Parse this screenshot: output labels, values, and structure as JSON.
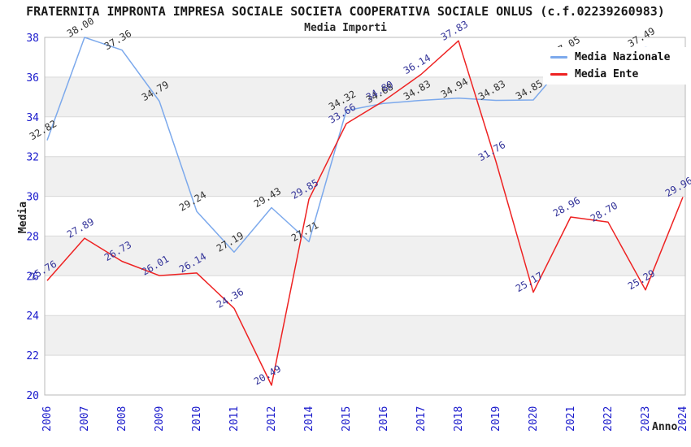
{
  "header": {
    "title": "FRATERNITA IMPRONTA IMPRESA SOCIALE SOCIETA COOPERATIVA SOCIALE ONLUS (c.f.02239260983)",
    "subtitle": "Media Importi"
  },
  "chart_data": {
    "type": "line",
    "title": "FRATERNITA IMPRONTA IMPRESA SOCIALE SOCIETA COOPERATIVA SOCIALE ONLUS (c.f.02239260983)",
    "subtitle": "Media Importi",
    "xlabel": "Anno",
    "ylabel": "Media",
    "ylim": [
      20,
      38
    ],
    "yticks": [
      20,
      22,
      24,
      26,
      28,
      30,
      32,
      34,
      36,
      38
    ],
    "categories": [
      "2006",
      "2007",
      "2008",
      "2009",
      "2010",
      "2011",
      "2012",
      "2014",
      "2015",
      "2016",
      "2017",
      "2018",
      "2019",
      "2020",
      "2021",
      "2022",
      "2023",
      "2024"
    ],
    "grid": "horizontal-bands-alternating-gray",
    "band_gray": "#f0f0f0",
    "axis_tick_color": "#1a1acc",
    "legend_position": "top-right-inside",
    "series": [
      {
        "name": "Media Nazionale",
        "color": "#7CA9EC",
        "label_color": "#333333",
        "values": [
          32.82,
          38.0,
          37.36,
          34.79,
          29.24,
          27.19,
          29.43,
          27.71,
          34.32,
          34.68,
          34.83,
          34.94,
          34.83,
          34.85,
          37.05,
          37.1,
          37.49,
          37.3
        ],
        "labels": [
          "32.82",
          "38.00",
          "37.36",
          "34.79",
          "29.24",
          "27.19",
          "29.43",
          "27.71",
          "34.32",
          "34.68",
          "34.83",
          "34.94",
          "34.83",
          "34.85",
          "37.05",
          null,
          "37.49",
          null
        ]
      },
      {
        "name": "Media Ente",
        "color": "#EE2222",
        "label_color": "#333399",
        "values": [
          25.76,
          27.89,
          26.73,
          26.01,
          26.14,
          24.36,
          20.49,
          29.85,
          33.66,
          34.8,
          36.14,
          37.83,
          31.76,
          25.17,
          28.96,
          28.7,
          25.29,
          29.96
        ],
        "labels": [
          "25.76",
          "27.89",
          "26.73",
          "26.01",
          "26.14",
          "24.36",
          "20.49",
          "29.85",
          "33.66",
          "34.80",
          "36.14",
          "37.83",
          "31.76",
          "25.17",
          "28.96",
          "28.70",
          "25.29",
          "29.96"
        ]
      }
    ]
  }
}
